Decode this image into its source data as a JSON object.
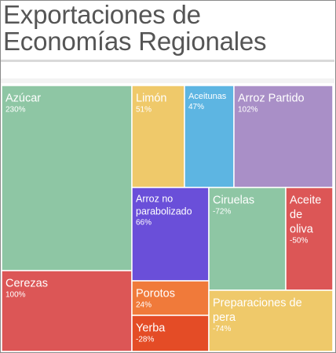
{
  "title": "Exportaciones de Economías Regionales",
  "chart_data": {
    "type": "treemap",
    "title": "Exportaciones de Economías Regionales",
    "items": [
      {
        "name": "Azúcar",
        "label_lines": [
          "Azúcar"
        ],
        "value": "230%",
        "color": "#8ec6a4"
      },
      {
        "name": "Cerezas",
        "label_lines": [
          "Cerezas"
        ],
        "value": "100%",
        "color": "#dc5656"
      },
      {
        "name": "Limón",
        "label_lines": [
          "Limón"
        ],
        "value": "51%",
        "color": "#efc96a"
      },
      {
        "name": "Aceitunas",
        "label_lines": [
          "Aceitunas"
        ],
        "value": "47%",
        "color": "#5db5e2"
      },
      {
        "name": "Arroz Partido",
        "label_lines": [
          "Arroz Partido"
        ],
        "value": "102%",
        "color": "#a98fc7"
      },
      {
        "name": "Arroz no parabolizado",
        "label_lines": [
          "Arroz no",
          "parabolizado"
        ],
        "value": "66%",
        "color": "#6a4fd9"
      },
      {
        "name": "Ciruelas",
        "label_lines": [
          "Ciruelas"
        ],
        "value": "-72%",
        "color": "#8ec6a4"
      },
      {
        "name": "Aceite de oliva",
        "label_lines": [
          "Aceite",
          "de",
          "oliva"
        ],
        "value": "-50%",
        "color": "#dc5656"
      },
      {
        "name": "Porotos",
        "label_lines": [
          "Porotos"
        ],
        "value": "24%",
        "color": "#f07a3a"
      },
      {
        "name": "Yerba",
        "label_lines": [
          "Yerba"
        ],
        "value": "-28%",
        "color": "#e44c26"
      },
      {
        "name": "Preparaciones de pera",
        "label_lines": [
          "Preparaciones de",
          "pera"
        ],
        "value": "-74%",
        "color": "#efc96a"
      }
    ]
  }
}
